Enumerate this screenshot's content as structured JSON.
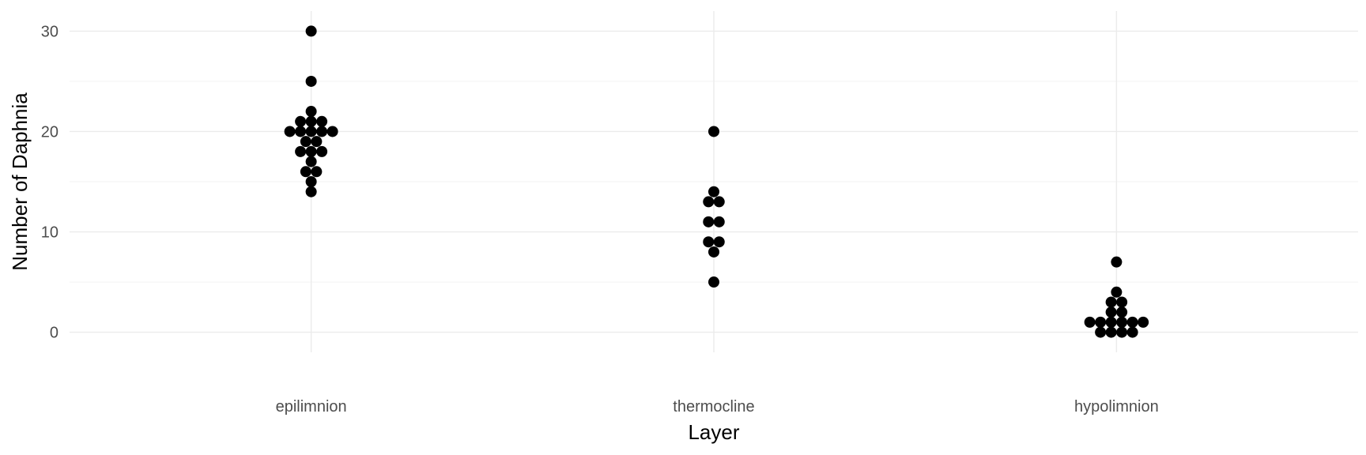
{
  "chart_data": {
    "type": "scatter",
    "xlabel": "Layer",
    "ylabel": "Number of Daphnia",
    "categories": [
      "epilimnion",
      "thermocline",
      "hypolimnion"
    ],
    "ylim": [
      -2,
      32
    ],
    "yticks": [
      0,
      10,
      20,
      30
    ],
    "grid": true,
    "legend": "none",
    "point_color": "#000000",
    "series": [
      {
        "category": "epilimnion",
        "values": [
          30,
          25,
          22,
          21,
          21,
          21,
          20,
          20,
          20,
          20,
          20,
          19,
          19,
          18,
          18,
          18,
          17,
          16,
          16,
          15,
          14
        ]
      },
      {
        "category": "thermocline",
        "values": [
          20,
          14,
          13,
          13,
          11,
          11,
          9,
          9,
          8,
          5
        ]
      },
      {
        "category": "hypolimnion",
        "values": [
          7,
          4,
          3,
          3,
          2,
          2,
          1,
          1,
          1,
          1,
          1,
          1,
          0,
          0,
          0,
          0
        ]
      }
    ]
  }
}
